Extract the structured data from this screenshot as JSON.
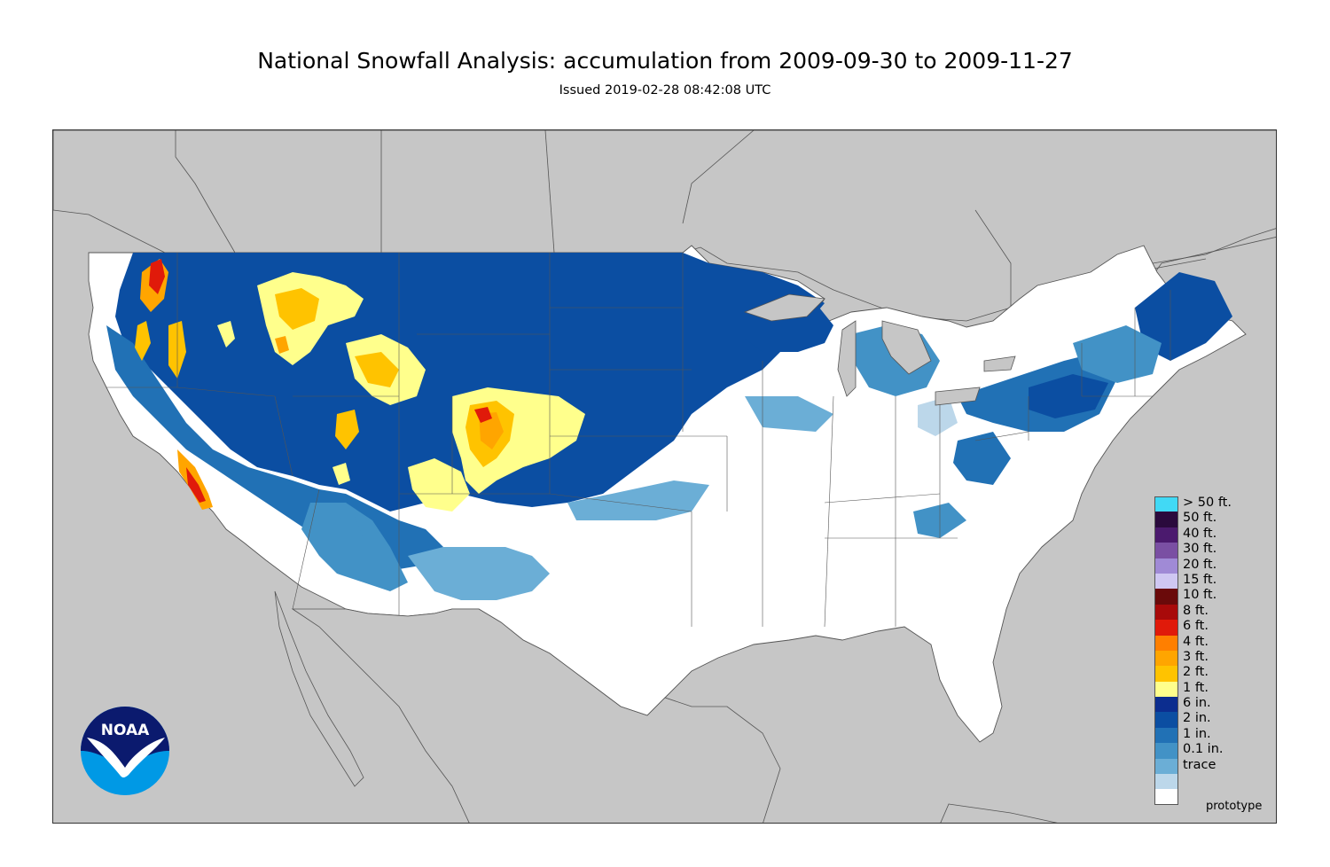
{
  "header": {
    "title": "National Snowfall Analysis: accumulation from 2009-09-30 to 2009-11-27",
    "subtitle": "Issued 2019-02-28 08:42:08 UTC"
  },
  "map": {
    "background_color": "#c6c6c6",
    "land_color": "#ffffff",
    "border_color": "#555555"
  },
  "legend": {
    "items": [
      {
        "label": "> 50 ft.",
        "color": "#41d9f5"
      },
      {
        "label": "50 ft.",
        "color": "#2a0a3d"
      },
      {
        "label": "40 ft.",
        "color": "#4b1a6e"
      },
      {
        "label": "30 ft.",
        "color": "#7a4fa3"
      },
      {
        "label": "20 ft.",
        "color": "#a08ad6"
      },
      {
        "label": "15 ft.",
        "color": "#cfc7f2"
      },
      {
        "label": "10 ft.",
        "color": "#6a0a0a"
      },
      {
        "label": "8 ft.",
        "color": "#a80a0a"
      },
      {
        "label": "6 ft.",
        "color": "#e01a0a"
      },
      {
        "label": "4 ft.",
        "color": "#ff7f00"
      },
      {
        "label": "3 ft.",
        "color": "#ffa500"
      },
      {
        "label": "2 ft.",
        "color": "#ffc300"
      },
      {
        "label": "1 ft.",
        "color": "#ffff8c"
      },
      {
        "label": "6 in.",
        "color": "#0c2d8f"
      },
      {
        "label": "2 in.",
        "color": "#0b4ea2"
      },
      {
        "label": "1 in.",
        "color": "#2171b5"
      },
      {
        "label": "0.1 in.",
        "color": "#4292c6"
      },
      {
        "label": "trace",
        "color": "#6baed6"
      }
    ],
    "bottom_swatches": [
      "#bcd7ea",
      "#ffffff"
    ]
  },
  "footer": {
    "prototype_label": "prototype"
  },
  "logo": {
    "text": "NOAA",
    "icon": "noaa-logo-icon"
  }
}
